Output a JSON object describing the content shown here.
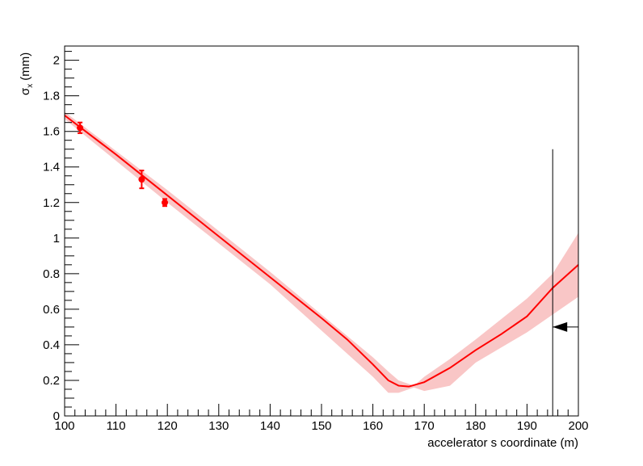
{
  "chart_data": {
    "type": "line",
    "y_label_symbol": "σ",
    "y_label_sub": "x",
    "y_label_unit": "(mm)",
    "x_label": "accelerator s coordinate (m)",
    "xlim": [
      100,
      200
    ],
    "xticks": [
      100,
      110,
      120,
      130,
      140,
      150,
      160,
      170,
      180,
      190,
      200
    ],
    "ylim": [
      0,
      2.08
    ],
    "yticks": [
      0,
      0.2,
      0.4,
      0.6,
      0.8,
      1,
      1.2,
      1.4,
      1.6,
      1.8,
      2
    ],
    "series": [
      {
        "color": "#ff0000",
        "x": [
          100,
          110,
          120,
          130,
          140,
          150,
          155,
          160,
          163,
          165,
          167,
          170,
          175,
          180,
          185,
          190,
          195,
          200
        ],
        "values": [
          1.69,
          1.47,
          1.24,
          1.01,
          0.78,
          0.55,
          0.43,
          0.29,
          0.2,
          0.17,
          0.165,
          0.19,
          0.27,
          0.37,
          0.46,
          0.56,
          0.72,
          0.85
        ]
      }
    ],
    "band": {
      "color": "#f9c6c6",
      "x": [
        100,
        120,
        140,
        160,
        163,
        165,
        168,
        170,
        175,
        180,
        190,
        195,
        200
      ],
      "upper": [
        1.71,
        1.27,
        0.81,
        0.33,
        0.25,
        0.2,
        0.17,
        0.22,
        0.32,
        0.43,
        0.66,
        0.8,
        1.03
      ],
      "lower": [
        1.67,
        1.2,
        0.74,
        0.22,
        0.13,
        0.13,
        0.16,
        0.14,
        0.17,
        0.3,
        0.47,
        0.57,
        0.67
      ]
    },
    "points": {
      "color": "#ff0000",
      "x": [
        103,
        115,
        119.5
      ],
      "values": [
        1.62,
        1.33,
        1.2
      ],
      "errors": [
        0.03,
        0.05,
        0.02
      ]
    },
    "vline": {
      "x": 195,
      "y_end": 1.5
    },
    "arrow": {
      "x_from": 200,
      "x_to": 195,
      "y": 0.5
    }
  }
}
